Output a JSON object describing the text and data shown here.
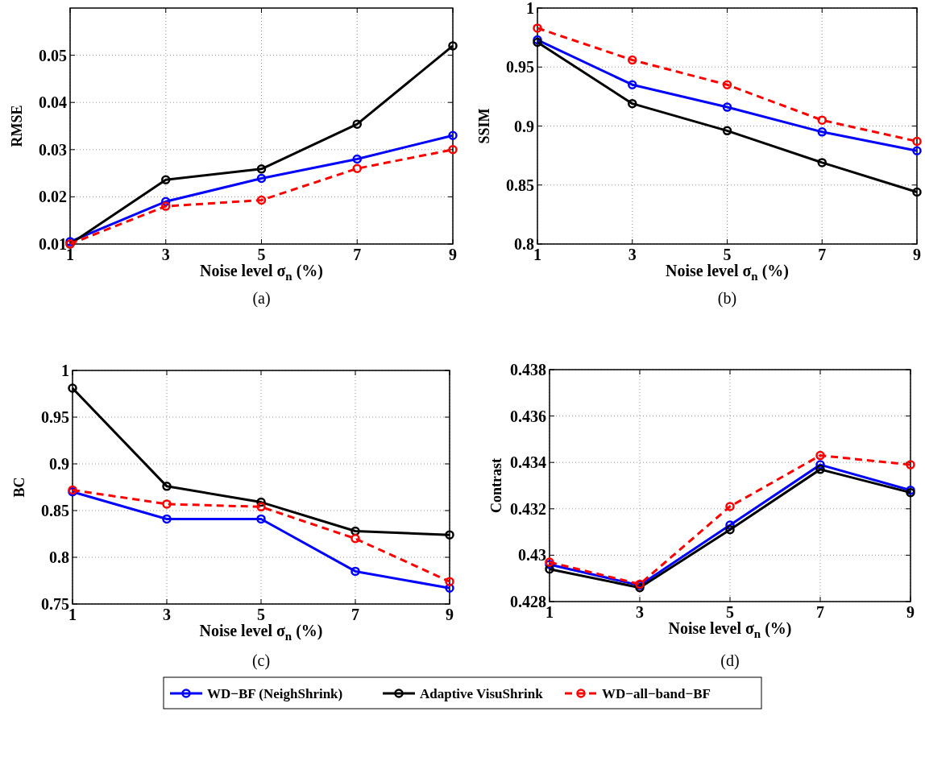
{
  "chart_data": [
    {
      "type": "line",
      "ylabel": "RMSE",
      "xlabel": "Noise level σ$_{n}$ (%)",
      "annotations": [
        "(a)"
      ],
      "x": [
        1,
        3,
        5,
        7,
        9
      ],
      "xlim": [
        1,
        9
      ],
      "xticks": [
        1,
        3,
        5,
        7,
        9
      ],
      "ylim": [
        0.01,
        0.06
      ],
      "yticks": [
        0.01,
        0.02,
        0.03,
        0.04,
        0.05
      ],
      "grid": true,
      "marker": "circle",
      "legend": "bottom",
      "series": [
        {
          "name": "WD−BF (NeighShrink)",
          "color": "#0000ff",
          "line_style": "solid",
          "values": [
            0.0105,
            0.019,
            0.0239,
            0.028,
            0.033
          ]
        },
        {
          "name": "Adaptive VisuShrink",
          "color": "#000000",
          "line_style": "solid",
          "values": [
            0.01,
            0.0236,
            0.0259,
            0.0354,
            0.052
          ]
        },
        {
          "name": "WD−all−band−BF",
          "color": "#ff0000",
          "line_style": "dashed",
          "values": [
            0.01,
            0.018,
            0.0193,
            0.026,
            0.03
          ]
        }
      ]
    },
    {
      "type": "line",
      "ylabel": "SSIM",
      "xlabel": "Noise level σ$_{n}$ (%)",
      "annotations": [
        "(b)"
      ],
      "x": [
        1,
        3,
        5,
        7,
        9
      ],
      "xlim": [
        1,
        9
      ],
      "xticks": [
        1,
        3,
        5,
        7,
        9
      ],
      "ylim": [
        0.8,
        1
      ],
      "yticks": [
        0.8,
        0.85,
        0.9,
        0.95,
        1
      ],
      "grid": true,
      "marker": "circle",
      "series": [
        {
          "color": "#0000ff",
          "line_style": "solid",
          "values": [
            0.973,
            0.935,
            0.916,
            0.895,
            0.879
          ]
        },
        {
          "color": "#000000",
          "line_style": "solid",
          "values": [
            0.971,
            0.919,
            0.896,
            0.869,
            0.844
          ]
        },
        {
          "color": "#ff0000",
          "line_style": "dashed",
          "values": [
            0.983,
            0.956,
            0.935,
            0.905,
            0.887
          ]
        }
      ]
    },
    {
      "type": "line",
      "ylabel": "BC",
      "xlabel": "Noise level σ$_{n}$ (%)",
      "annotations": [
        "(c)"
      ],
      "x": [
        1,
        3,
        5,
        7,
        9
      ],
      "xlim": [
        1,
        9
      ],
      "xticks": [
        1,
        3,
        5,
        7,
        9
      ],
      "ylim": [
        0.75,
        1
      ],
      "yticks": [
        0.75,
        0.8,
        0.85,
        0.9,
        0.95,
        1
      ],
      "grid": true,
      "marker": "circle",
      "series": [
        {
          "color": "#0000ff",
          "line_style": "solid",
          "values": [
            0.87,
            0.841,
            0.841,
            0.785,
            0.767
          ]
        },
        {
          "color": "#000000",
          "line_style": "solid",
          "values": [
            0.981,
            0.876,
            0.859,
            0.828,
            0.824
          ]
        },
        {
          "color": "#ff0000",
          "line_style": "dashed",
          "values": [
            0.872,
            0.857,
            0.854,
            0.82,
            0.774
          ]
        }
      ]
    },
    {
      "type": "line",
      "ylabel": "Contrast",
      "xlabel": "Noise level σ$_{n}$ (%)",
      "annotations": [
        "(d)"
      ],
      "x": [
        1,
        3,
        5,
        7,
        9
      ],
      "xlim": [
        1,
        9
      ],
      "xticks": [
        1,
        3,
        5,
        7,
        9
      ],
      "ylim": [
        0.428,
        0.438
      ],
      "yticks": [
        0.428,
        0.43,
        0.432,
        0.434,
        0.436,
        0.438
      ],
      "grid": true,
      "marker": "circle",
      "series": [
        {
          "color": "#0000ff",
          "line_style": "solid",
          "values": [
            0.4296,
            0.4287,
            0.4313,
            0.4339,
            0.4328
          ]
        },
        {
          "color": "#000000",
          "line_style": "solid",
          "values": [
            0.4294,
            0.4286,
            0.4311,
            0.4337,
            0.4327
          ]
        },
        {
          "color": "#ff0000",
          "line_style": "dashed",
          "values": [
            0.4297,
            0.42875,
            0.4321,
            0.4343,
            0.4339
          ]
        }
      ]
    }
  ]
}
